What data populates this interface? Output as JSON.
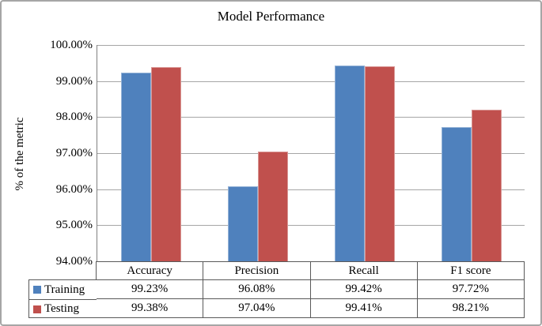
{
  "chart_data": {
    "type": "bar",
    "title": "Model Performance",
    "xlabel": "",
    "ylabel": "% of the metric",
    "ylim": [
      94,
      100
    ],
    "grid": true,
    "legend_position": "table-left",
    "categories": [
      "Accuracy",
      "Precision",
      "Recall",
      "F1 score"
    ],
    "yticks": [
      "100.00%",
      "99.00%",
      "98.00%",
      "97.00%",
      "96.00%",
      "95.00%",
      "94.00%"
    ],
    "series": [
      {
        "name": "Training",
        "color": "#4f81bd",
        "border_color": "#95b3d7",
        "values": [
          99.23,
          96.08,
          99.42,
          97.72
        ],
        "labels": [
          "99.23%",
          "96.08%",
          "99.42%",
          "97.72%"
        ]
      },
      {
        "name": "Testing",
        "color": "#c0504d",
        "border_color": "#d99694",
        "values": [
          99.38,
          97.04,
          99.41,
          98.21
        ],
        "labels": [
          "99.38%",
          "97.04%",
          "99.41%",
          "98.21%"
        ]
      }
    ]
  }
}
